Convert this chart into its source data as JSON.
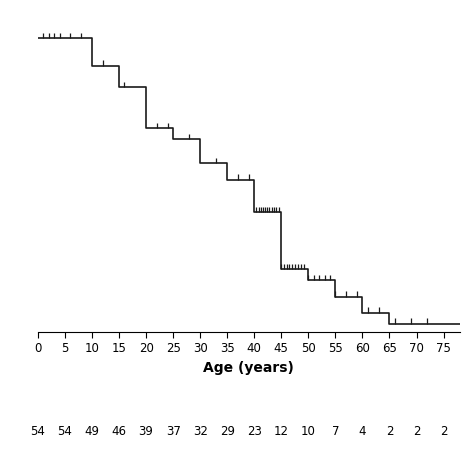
{
  "xlabel": "Age (years)",
  "xlim": [
    0,
    78
  ],
  "ylim": [
    0,
    1.05
  ],
  "xticks": [
    0,
    5,
    10,
    15,
    20,
    25,
    30,
    35,
    40,
    45,
    50,
    55,
    60,
    65,
    70,
    75
  ],
  "at_risk_ages": [
    0,
    5,
    10,
    15,
    20,
    25,
    30,
    35,
    40,
    45,
    50,
    55,
    60,
    65,
    70,
    75
  ],
  "at_risk_values": [
    54,
    54,
    49,
    46,
    39,
    37,
    32,
    29,
    23,
    12,
    10,
    7,
    4,
    2,
    2,
    2
  ],
  "line_color": "#1a1a1a",
  "censored_color": "#1a1a1a",
  "background_color": "#ffffff",
  "figsize": [
    4.74,
    4.74
  ],
  "dpi": 100,
  "km_times": [
    0,
    5,
    10,
    15,
    20,
    25,
    30,
    35,
    40,
    45,
    50,
    55,
    60,
    65,
    70,
    75,
    78
  ],
  "km_survival": [
    1.0,
    1.0,
    0.907,
    0.833,
    0.694,
    0.657,
    0.574,
    0.519,
    0.407,
    0.213,
    0.176,
    0.12,
    0.065,
    0.028,
    0.028,
    0.028,
    0.028
  ],
  "censored_early": [
    1,
    2,
    3,
    4,
    6,
    8,
    12,
    16,
    22,
    24,
    28,
    33,
    37,
    39
  ],
  "censored_late": [
    40.3,
    40.8,
    41.2,
    41.6,
    42.0,
    42.4,
    42.8,
    43.2,
    43.6,
    44.0,
    44.5,
    45.0,
    45.5,
    46.0,
    46.5,
    47.0,
    47.5,
    48.0,
    48.6,
    49.2,
    50.0,
    51.0,
    52.0,
    53.0,
    54.0,
    55.0,
    57.0,
    59.0,
    61.0,
    63.0,
    66.0,
    69.0,
    72.0
  ]
}
